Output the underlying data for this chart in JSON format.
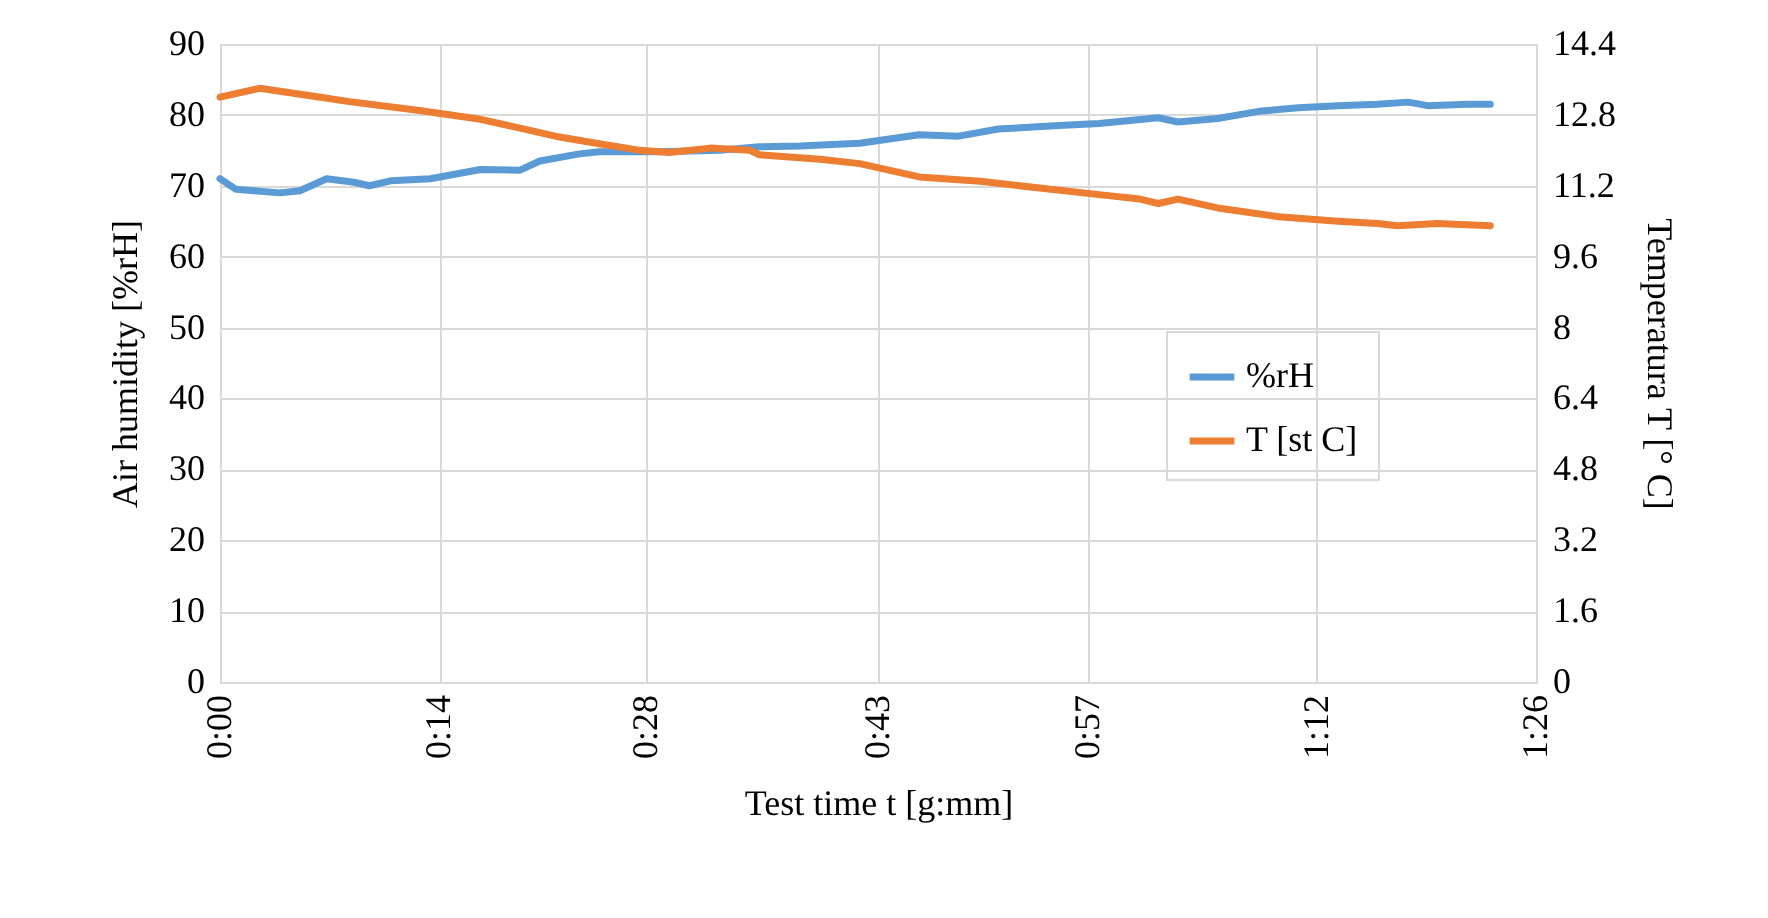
{
  "chart_data": {
    "type": "line",
    "xlabel": "Test time t [g:mm]",
    "ylabel": "Air humidity [%rH]",
    "y2label": "Temperatura T [° C]",
    "xlim": [
      0,
      86.4
    ],
    "xticks": [
      {
        "value": 0,
        "label": "0:00"
      },
      {
        "value": 14.4,
        "label": "0:14"
      },
      {
        "value": 28,
        "label": "0:28"
      },
      {
        "value": 43.2,
        "label": "0:43"
      },
      {
        "value": 57,
        "label": "0:57"
      },
      {
        "value": 72,
        "label": "1:12"
      },
      {
        "value": 86.4,
        "label": "1:26"
      }
    ],
    "ylim": [
      0,
      90
    ],
    "yticks": [
      0,
      10,
      20,
      30,
      40,
      50,
      60,
      70,
      80,
      90
    ],
    "y2lim": [
      0,
      14.4
    ],
    "y2ticks": [
      0,
      1.6,
      3.2,
      4.8,
      6.4,
      8,
      9.6,
      11.2,
      12.8,
      14.4
    ],
    "grid": true,
    "legend": "right",
    "marker": "none",
    "line_style": "solid",
    "series": [
      {
        "name": "%rH",
        "color": "#5b9bd5",
        "x": [
          0,
          1.05,
          3.94,
          5.25,
          7.0,
          8.8,
          9.8,
          11.2,
          13.8,
          17.1,
          19.7,
          21.0,
          23.6,
          24.9,
          28.9,
          32.8,
          35.4,
          38.1,
          42.0,
          45.9,
          48.5,
          51.1,
          55.1,
          57.7,
          61.6,
          62.9,
          65.5,
          68.2,
          70.8,
          73.4,
          76.0,
          78.0,
          79.3,
          81.9,
          83.4
        ],
        "values": [
          71,
          69.5,
          69,
          69.3,
          71,
          70.5,
          70,
          70.7,
          71,
          72.3,
          72.2,
          73.5,
          74.5,
          74.8,
          74.8,
          75,
          75.5,
          75.6,
          76,
          77.2,
          77,
          78,
          78.5,
          78.8,
          79.6,
          79,
          79.5,
          80.5,
          81,
          81.3,
          81.5,
          81.8,
          81.3,
          81.5,
          81.5
        ]
      },
      {
        "name": "T [st C]",
        "color": "#ed7d31",
        "axis": "y2",
        "x": [
          0,
          2.6,
          6.6,
          8.5,
          13.1,
          17.1,
          19.7,
          22.3,
          24.9,
          27.6,
          29.5,
          32.2,
          34.8,
          35.4,
          39.4,
          42.0,
          45.9,
          49.9,
          53.8,
          57.7,
          60.4,
          61.6,
          62.9,
          65.5,
          69.5,
          73.4,
          76.0,
          77.3,
          79.9,
          83.4
        ],
        "values": [
          13.2,
          13.4,
          13.2,
          13.1,
          12.9,
          12.7,
          12.5,
          12.3,
          12.15,
          12.0,
          11.95,
          12.05,
          12.0,
          11.9,
          11.8,
          11.7,
          11.4,
          11.3,
          11.15,
          11.0,
          10.9,
          10.8,
          10.9,
          10.7,
          10.5,
          10.4,
          10.35,
          10.3,
          10.35,
          10.3
        ]
      }
    ]
  }
}
